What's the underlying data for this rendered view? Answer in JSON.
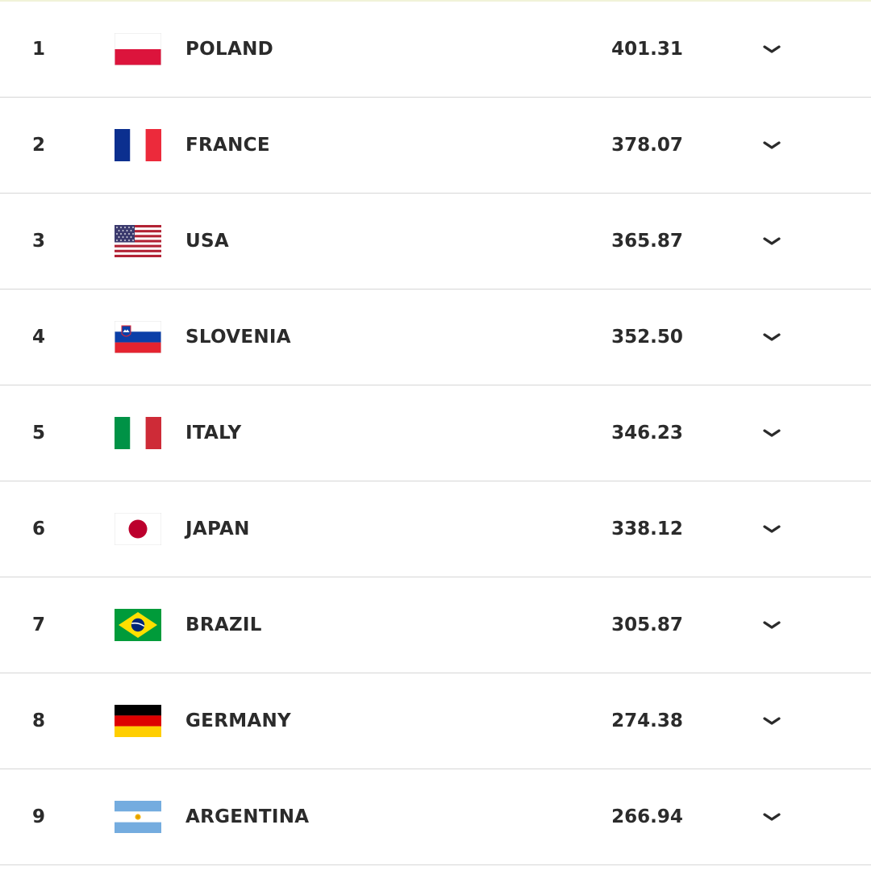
{
  "ranking": {
    "rows": [
      {
        "rank": "1",
        "country": "POLAND",
        "points": "401.31",
        "flag_icon": "poland-flag-icon"
      },
      {
        "rank": "2",
        "country": "FRANCE",
        "points": "378.07",
        "flag_icon": "france-flag-icon"
      },
      {
        "rank": "3",
        "country": "USA",
        "points": "365.87",
        "flag_icon": "usa-flag-icon"
      },
      {
        "rank": "4",
        "country": "SLOVENIA",
        "points": "352.50",
        "flag_icon": "slovenia-flag-icon"
      },
      {
        "rank": "5",
        "country": "ITALY",
        "points": "346.23",
        "flag_icon": "italy-flag-icon"
      },
      {
        "rank": "6",
        "country": "JAPAN",
        "points": "338.12",
        "flag_icon": "japan-flag-icon"
      },
      {
        "rank": "7",
        "country": "BRAZIL",
        "points": "305.87",
        "flag_icon": "brazil-flag-icon"
      },
      {
        "rank": "8",
        "country": "GERMANY",
        "points": "274.38",
        "flag_icon": "germany-flag-icon"
      },
      {
        "rank": "9",
        "country": "ARGENTINA",
        "points": "266.94",
        "flag_icon": "argentina-flag-icon"
      }
    ],
    "expand_icon": "chevron-down-icon"
  },
  "colors": {
    "text": "#2b2b2b",
    "divider": "#d6d6d6",
    "background": "#ffffff"
  }
}
